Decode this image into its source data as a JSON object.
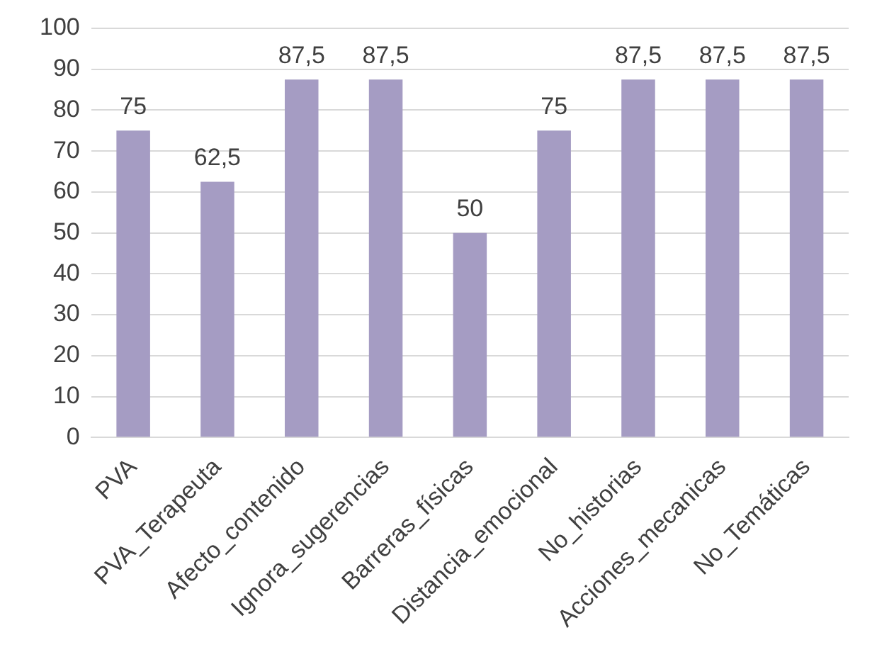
{
  "chart_data": {
    "type": "bar",
    "categories": [
      "PVA",
      "PVA_Terapeuta",
      "Afecto_contenido",
      "Ignora_sugerencias",
      "Barreras_físicas",
      "Distancia_emocional",
      "No_historias",
      "Acciones_mecanicas",
      "No_Temáticas"
    ],
    "values": [
      75,
      62.5,
      87.5,
      87.5,
      50,
      75,
      87.5,
      87.5,
      87.5
    ],
    "value_labels": [
      "75",
      "62,5",
      "87,5",
      "87,5",
      "50",
      "75",
      "87,5",
      "87,5",
      "87,5"
    ],
    "color": "#a59cc3",
    "ylim": [
      0,
      100
    ],
    "yticks": [
      0,
      10,
      20,
      30,
      40,
      50,
      60,
      70,
      80,
      90,
      100
    ],
    "grid": "y",
    "legend": false
  }
}
